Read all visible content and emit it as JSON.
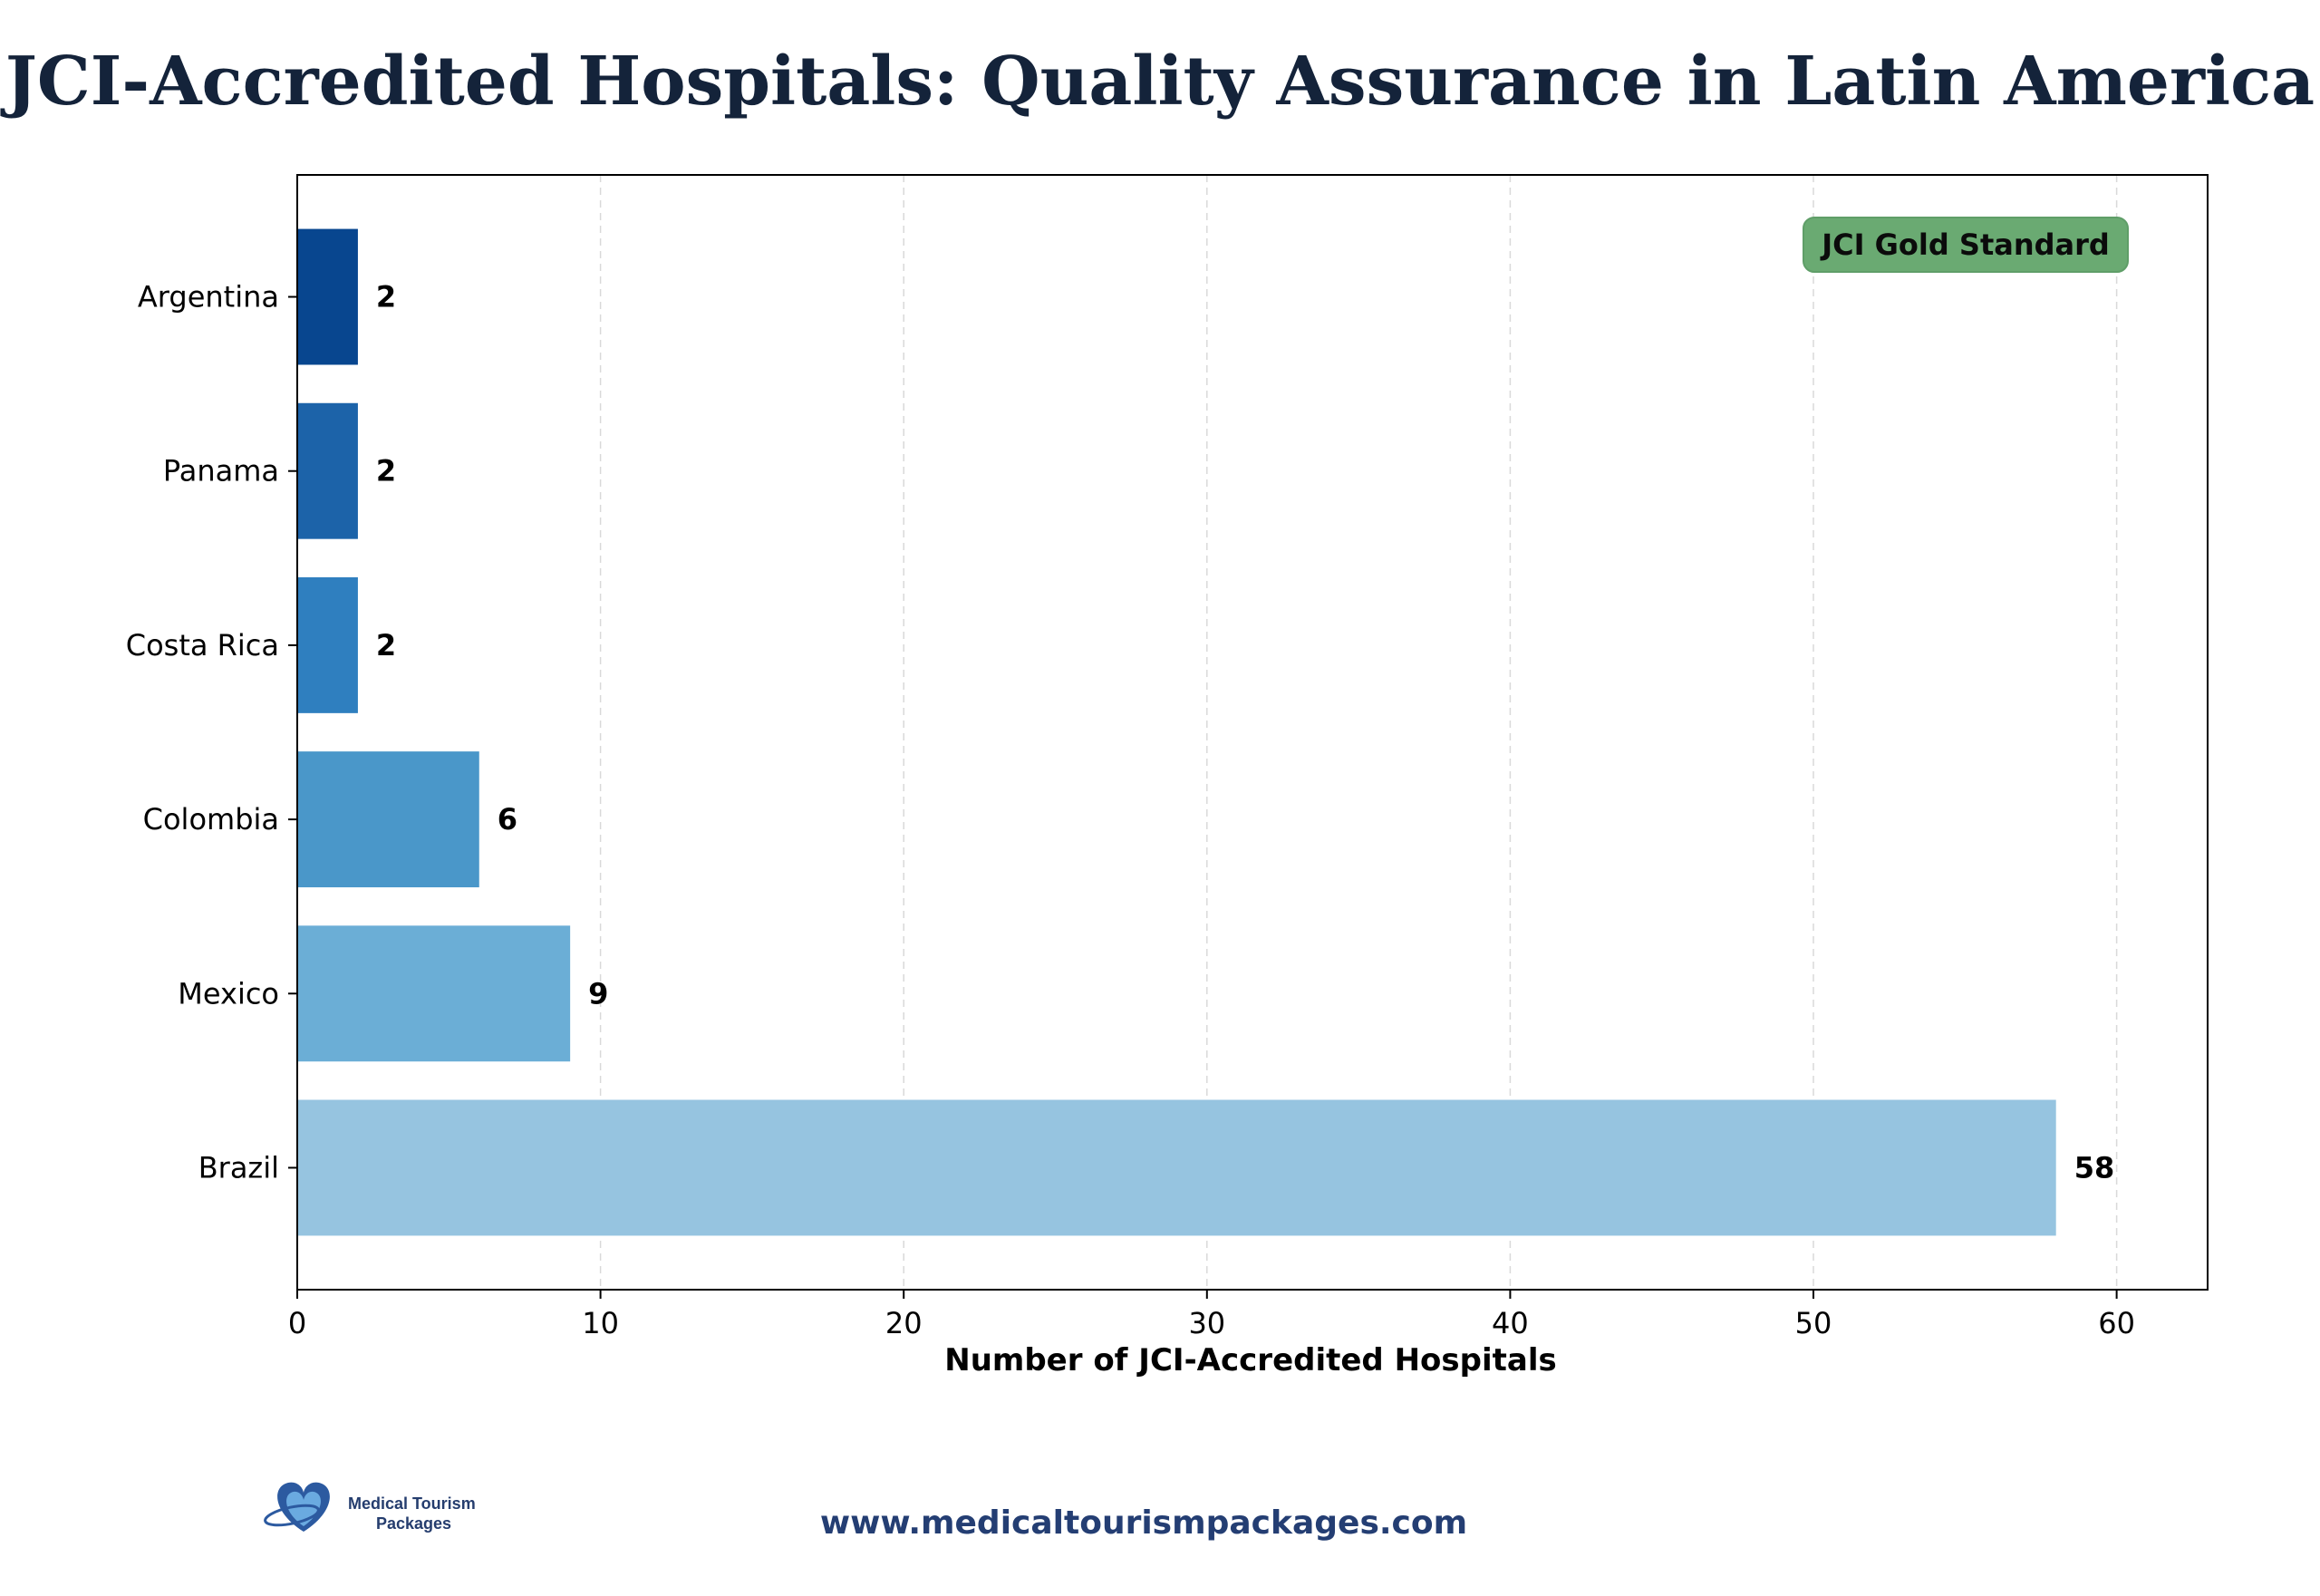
{
  "chart_data": {
    "type": "bar",
    "orientation": "horizontal",
    "title": "JCI-Accredited Hospitals: Quality Assurance in Latin America",
    "xlabel": "Number of JCI-Accredited Hospitals",
    "ylabel": "",
    "categories": [
      "Argentina",
      "Panama",
      "Costa Rica",
      "Colombia",
      "Mexico",
      "Brazil"
    ],
    "values": [
      2,
      2,
      2,
      6,
      9,
      58
    ],
    "colors": [
      "#08468f",
      "#1c63a9",
      "#2f7fbf",
      "#4a97c9",
      "#6baed6",
      "#96c4e0"
    ],
    "xlim": [
      0,
      63
    ],
    "xticks": [
      "0",
      "10",
      "20",
      "30",
      "40",
      "50",
      "60"
    ],
    "xtick_values": [
      0,
      10,
      20,
      30,
      40,
      50,
      60
    ],
    "grid": "x dashed",
    "legend": "none",
    "annotation": {
      "text": "JCI Gold Standard",
      "placement": "top-right",
      "color": "#6aaa72"
    }
  },
  "footer": {
    "logo_line1": "Medical Tourism",
    "logo_line2": "Packages",
    "url": "www.medicaltourismpackages.com"
  },
  "colors": {
    "title": "#14233a",
    "footer_url": "#243e73",
    "logo_heart": "#2c5aa0",
    "logo_heart_light": "#6aaae0"
  }
}
